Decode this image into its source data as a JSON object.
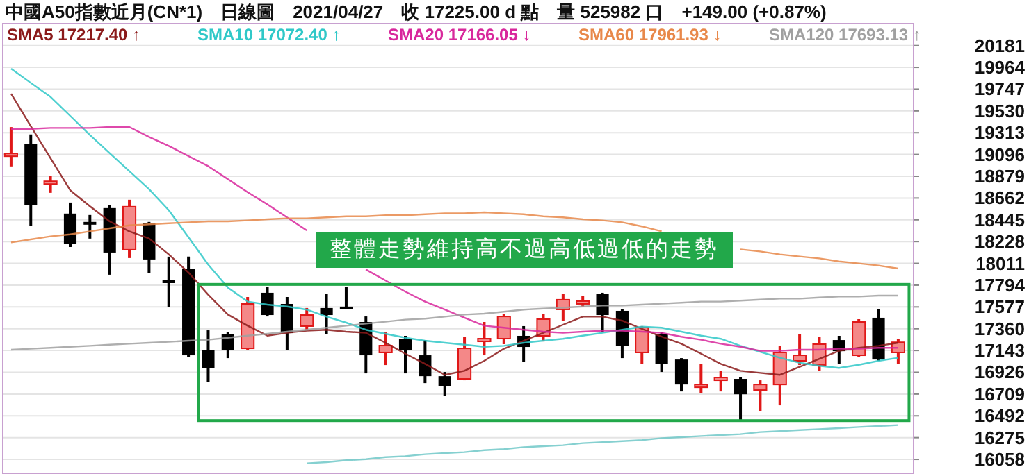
{
  "chart_data": {
    "type": "candlestick",
    "title": "中國A50指數近月(CN*1)　日線圖　2021/04/27　收 17225.00 d 點　量 525982 口　+149.00 (+0.87%)",
    "categories": [
      null,
      null,
      null,
      null,
      null,
      null,
      null,
      null,
      null,
      null,
      null,
      null,
      null,
      null,
      null,
      null,
      null,
      null,
      null,
      null,
      null,
      null,
      null,
      null,
      null,
      null,
      null,
      null,
      null,
      null,
      null,
      null,
      null,
      null,
      null,
      null,
      null,
      null,
      null,
      null,
      null,
      null,
      null,
      null,
      null,
      null
    ],
    "ohlc": [
      [
        19090,
        19369,
        18977,
        19106
      ],
      [
        19199,
        19296,
        18382,
        18590
      ],
      [
        18815,
        18884,
        18714,
        18829
      ],
      [
        18507,
        18617,
        18174,
        18202
      ],
      [
        18424,
        18493,
        18258,
        18410
      ],
      [
        18562,
        18590,
        17898,
        18119
      ],
      [
        18147,
        18645,
        18064,
        18576
      ],
      [
        18410,
        18424,
        17912,
        18050
      ],
      [
        17842,
        18078,
        17579,
        17830
      ],
      [
        17953,
        18078,
        17081,
        17095
      ],
      [
        17150,
        17344,
        16832,
        16970
      ],
      [
        17303,
        17330,
        17067,
        17150
      ],
      [
        17164,
        17676,
        17150,
        17607
      ],
      [
        17718,
        17773,
        17482,
        17496
      ],
      [
        17607,
        17676,
        17150,
        17316
      ],
      [
        17386,
        17566,
        17344,
        17496
      ],
      [
        17566,
        17704,
        17303,
        17496
      ],
      [
        17580,
        17773,
        17552,
        17566
      ],
      [
        17427,
        17482,
        16915,
        17095
      ],
      [
        17123,
        17330,
        16998,
        17192
      ],
      [
        17261,
        17289,
        16915,
        17150
      ],
      [
        17095,
        17247,
        16818,
        16887
      ],
      [
        16887,
        16929,
        16694,
        16790
      ],
      [
        16860,
        17275,
        16846,
        17164
      ],
      [
        17250,
        17427,
        17095,
        17261
      ],
      [
        17261,
        17510,
        17206,
        17482
      ],
      [
        17289,
        17386,
        17026,
        17178
      ],
      [
        17289,
        17510,
        17233,
        17455
      ],
      [
        17552,
        17704,
        17441,
        17649
      ],
      [
        17622,
        17690,
        17579,
        17635
      ],
      [
        17704,
        17718,
        17330,
        17496
      ],
      [
        17538,
        17552,
        17067,
        17192
      ],
      [
        17123,
        17386,
        17012,
        17372
      ],
      [
        17303,
        17330,
        16929,
        17012
      ],
      [
        17053,
        17067,
        16735,
        16804
      ],
      [
        16790,
        17012,
        16721,
        16804
      ],
      [
        16846,
        16943,
        16735,
        16874
      ],
      [
        16860,
        16874,
        16444,
        16707
      ],
      [
        16749,
        16846,
        16541,
        16804
      ],
      [
        16804,
        17192,
        16597,
        17123
      ],
      [
        17040,
        17303,
        16998,
        17095
      ],
      [
        16998,
        17275,
        16943,
        17206
      ],
      [
        17247,
        17289,
        17012,
        17136
      ],
      [
        17095,
        17455,
        17081,
        17427
      ],
      [
        17469,
        17552,
        17040,
        17053
      ],
      [
        17123,
        17261,
        17012,
        17225
      ]
    ],
    "series": [
      {
        "type": "line",
        "name": "SMA5 17217.40 ↑",
        "color": "#8b1a1a",
        "values": [
          19700,
          19380,
          19060,
          18740,
          18580,
          18430,
          18330,
          18260,
          18100,
          17920,
          17700,
          17500,
          17390,
          17290,
          17320,
          17340,
          17350,
          17330,
          17320,
          17220,
          17110,
          17010,
          16900,
          16940,
          17040,
          17160,
          17240,
          17320,
          17400,
          17480,
          17480,
          17440,
          17360,
          17280,
          17210,
          17110,
          17010,
          16940,
          16920,
          16900,
          16980,
          17060,
          17140,
          17170,
          17190,
          17220
        ]
      },
      {
        "type": "line",
        "name": "SMA10 17072.40 ↑",
        "color": "#30c8c8",
        "values": [
          19950,
          19810,
          19670,
          19480,
          19290,
          19110,
          18930,
          18750,
          18540,
          18270,
          18000,
          17770,
          17630,
          17600,
          17580,
          17550,
          17480,
          17420,
          17350,
          17310,
          17270,
          17240,
          17220,
          17200,
          17180,
          17190,
          17220,
          17240,
          17260,
          17290,
          17320,
          17350,
          17380,
          17370,
          17330,
          17290,
          17260,
          17190,
          17130,
          17070,
          17020,
          16990,
          16970,
          17000,
          17040,
          17070
        ]
      },
      {
        "type": "line",
        "name": "SMA20 17166.05 ↓",
        "color": "#d8289c",
        "values": [
          19350,
          19350,
          19360,
          19360,
          19360,
          19370,
          19370,
          19270,
          19180,
          19080,
          18980,
          18850,
          18720,
          18600,
          18470,
          18340,
          null,
          null,
          17950,
          17840,
          17730,
          17630,
          17550,
          17470,
          17390,
          17370,
          17350,
          17330,
          17320,
          17330,
          17340,
          17340,
          17330,
          17320,
          17280,
          17250,
          17210,
          17180,
          17140,
          17140,
          17150,
          17150,
          17160,
          17160,
          17170,
          17170
        ]
      },
      {
        "type": "line",
        "name": "SMA60 17961.93 ↓",
        "color": "#e8884a",
        "values": [
          18220,
          18250,
          18280,
          18300,
          18330,
          18360,
          18390,
          18400,
          18410,
          18420,
          18430,
          18430,
          18440,
          18450,
          18460,
          18460,
          18470,
          18480,
          18480,
          18490,
          18490,
          18500,
          18510,
          18510,
          18520,
          18510,
          18500,
          18480,
          18470,
          18450,
          18440,
          18420,
          18380,
          18330,
          null,
          null,
          null,
          18150,
          18130,
          18100,
          18080,
          18060,
          18030,
          18010,
          17990,
          17960
        ]
      },
      {
        "type": "line",
        "name": "SMA120 17693.13 ↑",
        "color": "#a0a0a0",
        "values": [
          17150,
          17160,
          17170,
          17180,
          17190,
          17200,
          17210,
          17220,
          17230,
          17240,
          17250,
          17270,
          17290,
          17310,
          17330,
          17350,
          17370,
          17390,
          17410,
          17430,
          17450,
          17460,
          17480,
          17500,
          17510,
          17530,
          17550,
          17560,
          17570,
          17580,
          17590,
          17590,
          17600,
          17610,
          17620,
          17630,
          17630,
          17640,
          17650,
          17660,
          17660,
          17670,
          17680,
          17680,
          17690,
          17690
        ]
      },
      {
        "type": "line",
        "color": "#70c8c8",
        "values": [
          null,
          null,
          null,
          null,
          null,
          null,
          null,
          null,
          null,
          null,
          null,
          null,
          null,
          null,
          null,
          16020,
          16030,
          16050,
          16060,
          16080,
          16090,
          16110,
          16120,
          16130,
          16150,
          16160,
          16180,
          16190,
          16200,
          16220,
          16230,
          16240,
          16250,
          16270,
          16280,
          16290,
          16300,
          16310,
          16330,
          16340,
          16350,
          16360,
          16370,
          16380,
          16390,
          16400
        ]
      }
    ],
    "ylim": [
      15920,
      20400
    ],
    "yticks": [
      16058,
      16275,
      16492,
      16709,
      16926,
      17143,
      17360,
      17577,
      17794,
      18011,
      18228,
      18445,
      18662,
      18879,
      19096,
      19313,
      19530,
      19747,
      19964,
      20181
    ],
    "grid": "y",
    "legend": "top left",
    "annotations": [
      "整體走勢維持高不過高低過低的走勢"
    ]
  }
}
